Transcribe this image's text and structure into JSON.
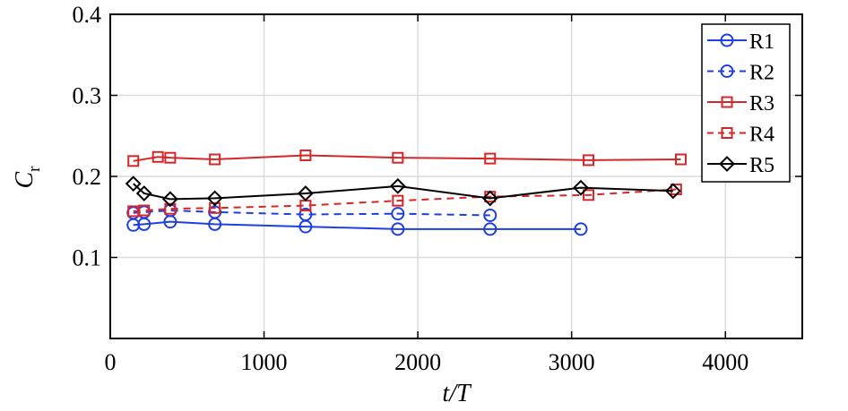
{
  "chart_data": {
    "type": "line",
    "xlabel": "t/T",
    "ylabel": "C",
    "ylabel_subscript": "r",
    "xlim": [
      0,
      4500
    ],
    "ylim": [
      0,
      0.4
    ],
    "xticks": [
      0,
      1000,
      2000,
      3000,
      4000
    ],
    "yticks": [
      0.1,
      0.2,
      0.3,
      0.4
    ],
    "xtick_labels": [
      "0",
      "1000",
      "2000",
      "3000",
      "4000"
    ],
    "ytick_labels": [
      "0.1",
      "0.2",
      "0.3",
      "0.4"
    ],
    "grid": true,
    "legend_position": "top-right",
    "series": [
      {
        "name": "R1",
        "color": "#1f3fe0",
        "dash": "solid",
        "marker": "circle",
        "x": [
          150,
          220,
          390,
          680,
          1270,
          1870,
          2470,
          3060
        ],
        "y": [
          0.14,
          0.141,
          0.144,
          0.141,
          0.138,
          0.135,
          0.135,
          0.135
        ]
      },
      {
        "name": "R2",
        "color": "#1f3fe0",
        "dash": "dashed",
        "marker": "circle",
        "x": [
          150,
          220,
          390,
          680,
          1270,
          1870,
          2470
        ],
        "y": [
          0.155,
          0.156,
          0.158,
          0.156,
          0.153,
          0.154,
          0.152
        ]
      },
      {
        "name": "R3",
        "color": "#d62728",
        "dash": "solid",
        "marker": "square",
        "x": [
          150,
          310,
          390,
          680,
          1270,
          1870,
          2470,
          3110,
          3710
        ],
        "y": [
          0.219,
          0.224,
          0.223,
          0.221,
          0.226,
          0.223,
          0.222,
          0.22,
          0.221
        ]
      },
      {
        "name": "R4",
        "color": "#d62728",
        "dash": "dashed",
        "marker": "square",
        "x": [
          150,
          220,
          390,
          680,
          1270,
          1870,
          2470,
          3110,
          3680
        ],
        "y": [
          0.157,
          0.158,
          0.16,
          0.161,
          0.164,
          0.17,
          0.175,
          0.177,
          0.184
        ]
      },
      {
        "name": "R5",
        "color": "#000000",
        "dash": "solid",
        "marker": "diamond",
        "x": [
          150,
          220,
          390,
          680,
          1270,
          1870,
          2470,
          3060,
          3660
        ],
        "y": [
          0.191,
          0.179,
          0.172,
          0.173,
          0.179,
          0.188,
          0.173,
          0.186,
          0.182
        ]
      }
    ]
  }
}
